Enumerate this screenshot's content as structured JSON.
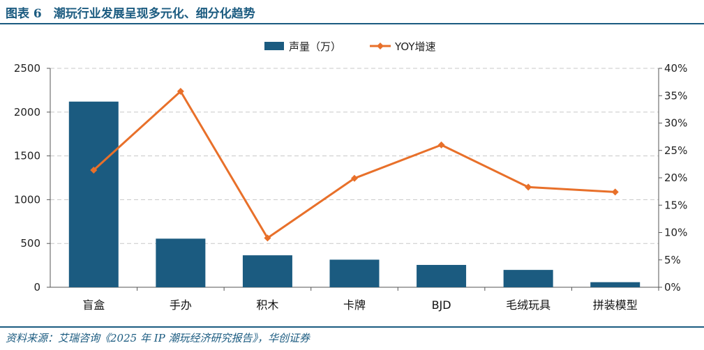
{
  "header": {
    "title": "图表 6　潮玩行业发展呈现多元化、细分化趋势"
  },
  "footer": {
    "source": "资料来源：艾瑞咨询《2025 年 IP 潮玩经济研究报告》，华创证券"
  },
  "colors": {
    "bar": "#1b5b80",
    "line": "#e8702a",
    "grid": "#c8c8c8",
    "rule": "#1b5b80"
  },
  "chart_data": {
    "type": "bar",
    "categories": [
      "盲盒",
      "手办",
      "积木",
      "卡牌",
      "BJD",
      "毛绒玩具",
      "拼装模型"
    ],
    "series": [
      {
        "name": "声量（万）",
        "type": "bar",
        "axis": "left",
        "values": [
          2120,
          555,
          365,
          315,
          255,
          198,
          58
        ]
      },
      {
        "name": "YOY增速",
        "type": "line",
        "axis": "right",
        "values": [
          0.214,
          0.358,
          0.09,
          0.199,
          0.26,
          0.183,
          0.174
        ]
      }
    ],
    "y_left": {
      "min": 0,
      "max": 2500,
      "ticks": [
        "0",
        "500",
        "1000",
        "1500",
        "2000",
        "2500"
      ]
    },
    "y_right": {
      "min": 0,
      "max": 0.4,
      "ticks": [
        "0%",
        "5%",
        "10%",
        "15%",
        "20%",
        "25%",
        "30%",
        "35%",
        "40%"
      ]
    },
    "grid": true,
    "legend_position": "top-center"
  }
}
